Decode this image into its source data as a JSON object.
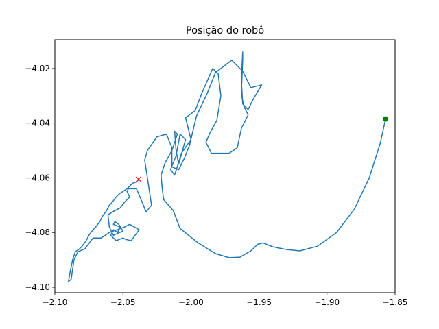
{
  "chart_data": {
    "type": "line",
    "title": "Posição do robô",
    "xlabel": "",
    "ylabel": "",
    "xlim": [
      -2.1,
      -1.85
    ],
    "ylim": [
      -4.102,
      -4.0095
    ],
    "xticks": [
      -2.1,
      -2.05,
      -2.0,
      -1.95,
      -1.9,
      -1.85
    ],
    "xtick_labels": [
      "−2.10",
      "−2.05",
      "−2.00",
      "−1.95",
      "−1.90",
      "−1.85"
    ],
    "yticks": [
      -4.1,
      -4.08,
      -4.06,
      -4.04,
      -4.02
    ],
    "ytick_labels": [
      "−4.10",
      "−4.08",
      "−4.06",
      "−4.04",
      "−4.02"
    ],
    "grid": false,
    "series": [
      {
        "color": "#1f77b4",
        "x": [
          -1.857,
          -1.861,
          -1.869,
          -1.88,
          -1.893,
          -1.907,
          -1.92,
          -1.93,
          -1.94,
          -1.947,
          -1.951,
          -1.956,
          -1.964,
          -1.972,
          -1.982,
          -1.995,
          -2.008,
          -2.013,
          -2.02,
          -2.021,
          -2.022,
          -2.019,
          -2.014,
          -2.01,
          -2.012,
          -2.011,
          -2.009,
          -2.004,
          -2.008,
          -2.011,
          -2.015,
          -2.012,
          -2.007,
          -2.0,
          -2.004,
          -1.997,
          -1.992,
          -1.984,
          -1.98,
          -1.978,
          -1.981,
          -1.986,
          -1.989,
          -1.985,
          -1.972,
          -1.966,
          -1.963,
          -1.958,
          -1.961,
          -1.963,
          -1.962,
          -1.962,
          -1.963,
          -1.962,
          -1.958,
          -1.954,
          -1.948,
          -1.956,
          -1.962,
          -1.97,
          -1.982,
          -1.988,
          -1.996,
          -2.001,
          -2.005,
          -2.009,
          -2.014,
          -2.014,
          -2.018,
          -2.025,
          -2.032,
          -2.034,
          -2.032,
          -2.029,
          -2.033,
          -2.035,
          -2.04,
          -2.046,
          -2.047,
          -2.045,
          -2.049,
          -2.052,
          -2.056,
          -2.061,
          -2.06,
          -2.057,
          -2.05,
          -2.053,
          -2.056,
          -2.057,
          -2.052,
          -2.054,
          -2.057,
          -2.059,
          -2.055,
          -2.05,
          -2.048,
          -2.044,
          -2.038,
          -2.045,
          -2.049,
          -2.06,
          -2.066,
          -2.072,
          -2.078,
          -2.083,
          -2.086,
          -2.088,
          -2.09,
          -2.089,
          -2.087,
          -2.085,
          -2.082,
          -2.08,
          -2.077,
          -2.075,
          -2.072,
          -2.07,
          -2.067,
          -2.065,
          -2.062,
          -2.06,
          -2.058,
          -2.055,
          -2.053,
          -2.05,
          -2.047,
          -2.045,
          -2.043,
          -2.04,
          -2.038
        ],
        "y": [
          -4.0385,
          -4.0475,
          -4.06,
          -4.0715,
          -4.08,
          -4.085,
          -4.0867,
          -4.0862,
          -4.0852,
          -4.0838,
          -4.0843,
          -4.0867,
          -4.089,
          -4.0892,
          -4.0877,
          -4.0837,
          -4.0785,
          -4.072,
          -4.068,
          -4.0645,
          -4.059,
          -4.0545,
          -4.05,
          -4.044,
          -4.043,
          -4.05,
          -4.055,
          -4.046,
          -4.044,
          -4.052,
          -4.057,
          -4.059,
          -4.051,
          -4.046,
          -4.038,
          -4.0355,
          -4.029,
          -4.02,
          -4.022,
          -4.03,
          -4.039,
          -4.0435,
          -4.047,
          -4.051,
          -4.051,
          -4.049,
          -4.042,
          -4.037,
          -4.034,
          -4.0295,
          -4.017,
          -4.014,
          -4.024,
          -4.033,
          -4.035,
          -4.031,
          -4.026,
          -4.027,
          -4.021,
          -4.017,
          -4.0215,
          -4.029,
          -4.0375,
          -4.048,
          -4.053,
          -4.057,
          -4.056,
          -4.049,
          -4.044,
          -4.045,
          -4.05,
          -4.0535,
          -4.06,
          -4.07,
          -4.0725,
          -4.07,
          -4.064,
          -4.064,
          -4.065,
          -4.067,
          -4.069,
          -4.071,
          -4.072,
          -4.0735,
          -4.078,
          -4.081,
          -4.0795,
          -4.077,
          -4.076,
          -4.077,
          -4.078,
          -4.08,
          -4.079,
          -4.081,
          -4.083,
          -4.082,
          -4.0825,
          -4.083,
          -4.079,
          -4.077,
          -4.078,
          -4.08,
          -4.082,
          -4.082,
          -4.086,
          -4.087,
          -4.09,
          -4.097,
          -4.098,
          -4.095,
          -4.09,
          -4.087,
          -4.086,
          -4.085,
          -4.083,
          -4.081,
          -4.079,
          -4.078,
          -4.076,
          -4.074,
          -4.072,
          -4.07,
          -4.069,
          -4.067,
          -4.066,
          -4.065,
          -4.064,
          -4.063,
          -4.062,
          -4.0615,
          -4.0605
        ]
      }
    ],
    "markers": [
      {
        "x": -1.857,
        "y": -4.0385,
        "shape": "circle",
        "color": "#008000"
      },
      {
        "x": -2.0385,
        "y": -4.0605,
        "shape": "x",
        "color": "#ff0000"
      }
    ]
  }
}
